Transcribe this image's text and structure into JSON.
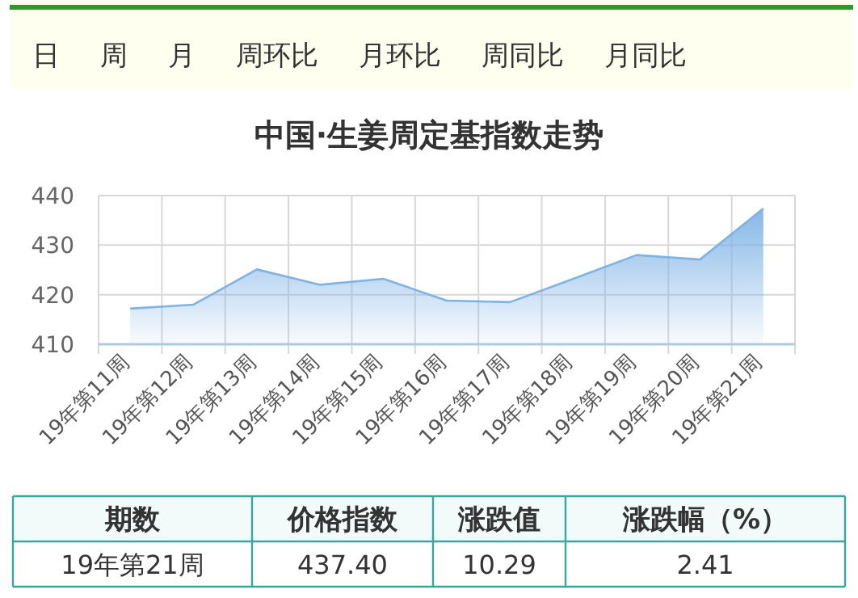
{
  "chart_data": [
    {
      "type": "other",
      "annotations": [
        "日",
        "周",
        "月",
        "周环比",
        "月环比",
        "周同比",
        "月同比"
      ]
    },
    {
      "type": "area",
      "title": "中国·生姜周定基指数走势",
      "categories": [
        "19年第11周",
        "19年第12周",
        "19年第13周",
        "19年第14周",
        "19年第15周",
        "19年第16周",
        "19年第17周",
        "19年第18周",
        "19年第19周",
        "19年第20周",
        "19年第21周"
      ],
      "series": [
        {
          "color": "#7fb3e6",
          "values": [
            417.2,
            418.0,
            425.1,
            422.0,
            423.2,
            418.8,
            418.5,
            423.2,
            428.0,
            427.1,
            437.4
          ]
        }
      ],
      "ylim": [
        410,
        440
      ],
      "yticks": [
        410,
        420,
        430,
        440
      ],
      "grid": true
    },
    {
      "type": "other",
      "annotations": [
        "期数",
        "价格指数",
        "涨跌值",
        "涨跌幅（%）",
        "19年第21周",
        "437.40",
        "10.29",
        "2.41"
      ]
    }
  ]
}
